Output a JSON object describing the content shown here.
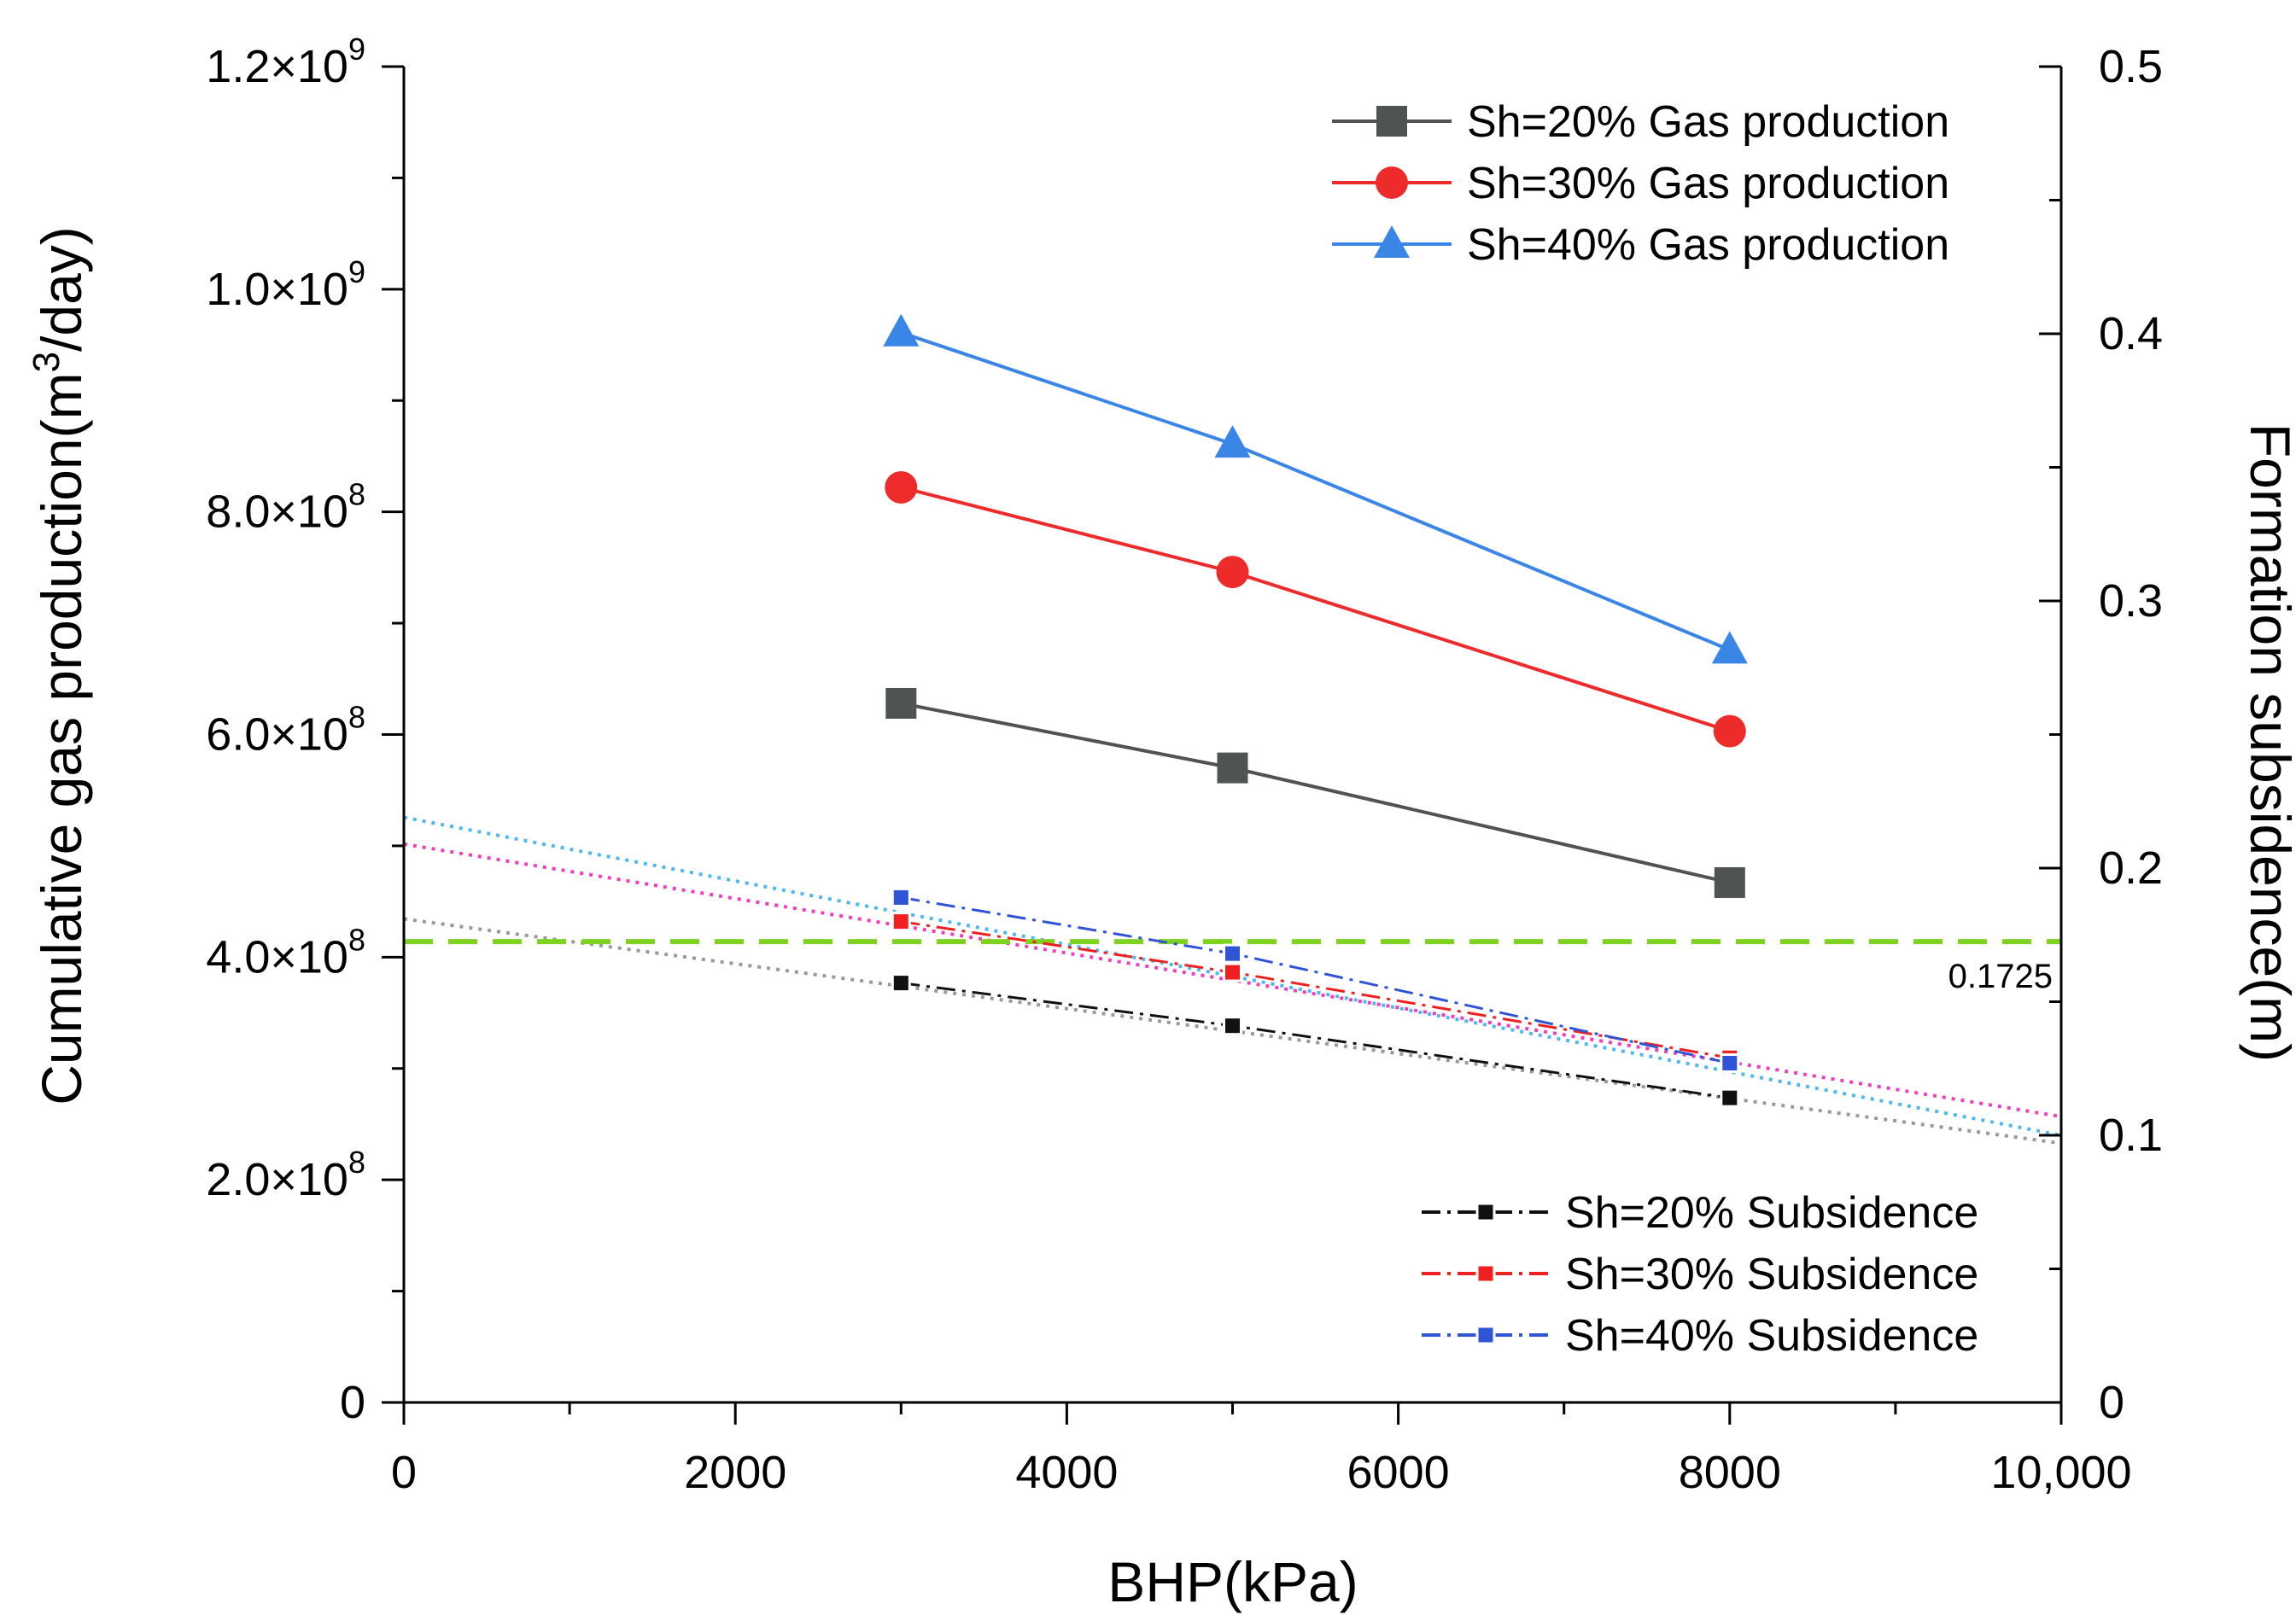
{
  "chart_data": {
    "type": "line",
    "title": "",
    "xlabel": "BHP(kPa)",
    "ylabel": "Cumulative gas production(m3/day)",
    "ylabel_parts": {
      "prefix": "Cumulative gas production(m",
      "sup": "3",
      "suffix": "/day)"
    },
    "y2label": "Formation subsidence(m)",
    "xlim": [
      0,
      10000
    ],
    "ylim": [
      0,
      1200000000
    ],
    "y2lim": [
      0,
      0.5
    ],
    "x_ticks": [
      0,
      2000,
      4000,
      6000,
      8000,
      10000
    ],
    "x_tick_labels": [
      "0",
      "2000",
      "4000",
      "6000",
      "8000",
      "10,000"
    ],
    "y_ticks": [
      0,
      200000000,
      400000000,
      600000000,
      800000000,
      1000000000,
      1200000000
    ],
    "y_tick_labels": [
      {
        "mant": "0",
        "exp": ""
      },
      {
        "mant": "2.0×10",
        "exp": "8"
      },
      {
        "mant": "4.0×10",
        "exp": "8"
      },
      {
        "mant": "6.0×10",
        "exp": "8"
      },
      {
        "mant": "8.0×10",
        "exp": "8"
      },
      {
        "mant": "1.0×10",
        "exp": "9"
      },
      {
        "mant": "1.2×10",
        "exp": "9"
      }
    ],
    "y2_ticks": [
      0,
      0.1,
      0.2,
      0.3,
      0.4,
      0.5
    ],
    "y2_tick_labels": [
      "0",
      "0.1",
      "0.2",
      "0.3",
      "0.4",
      "0.5"
    ],
    "series": [
      {
        "name": "Sh=20% Gas production",
        "axis": "y",
        "x": [
          3000,
          5000,
          8000
        ],
        "values": [
          628000000,
          570000000,
          467000000
        ],
        "color": "#505353",
        "marker": "square",
        "dash": "solid"
      },
      {
        "name": "Sh=30% Gas production",
        "axis": "y",
        "x": [
          3000,
          5000,
          8000
        ],
        "values": [
          822000000,
          746000000,
          603000000
        ],
        "color": "#ee2b2b",
        "marker": "circle",
        "dash": "solid"
      },
      {
        "name": "Sh=40% Gas production",
        "axis": "y",
        "x": [
          3000,
          5000,
          8000
        ],
        "values": [
          961000000,
          861000000,
          676000000
        ],
        "color": "#3a86e6",
        "marker": "triangle",
        "dash": "solid"
      },
      {
        "name": "Sh=20% Subsidence",
        "axis": "y2",
        "x": [
          3000,
          5000,
          8000
        ],
        "values": [
          0.157,
          0.141,
          0.114
        ],
        "color": "#111111",
        "marker": "small-square",
        "dash": "dashdot"
      },
      {
        "name": "Sh=30% Subsidence",
        "axis": "y2",
        "x": [
          3000,
          5000,
          8000
        ],
        "values": [
          0.18,
          0.161,
          0.129
        ],
        "color": "#ee2020",
        "marker": "small-square",
        "dash": "dashdot"
      },
      {
        "name": "Sh=40% Subsidence",
        "axis": "y2",
        "x": [
          3000,
          5000,
          8000
        ],
        "values": [
          0.189,
          0.168,
          0.127
        ],
        "color": "#2f55d6",
        "marker": "small-square",
        "dash": "dashdot"
      }
    ],
    "trendlines": [
      {
        "name": "Sh=20% Subsidence trend",
        "axis": "y2",
        "x": [
          0,
          10000
        ],
        "values": [
          0.181,
          0.097
        ],
        "color": "#999999"
      },
      {
        "name": "Sh=30% Subsidence trend",
        "axis": "y2",
        "x": [
          0,
          10000
        ],
        "values": [
          0.209,
          0.107
        ],
        "color": "#ef3fbf"
      },
      {
        "name": "Sh=40% Subsidence trend",
        "axis": "y2",
        "x": [
          0,
          10000
        ],
        "values": [
          0.219,
          0.1
        ],
        "color": "#4fb8f0"
      }
    ],
    "reference_line": {
      "axis": "y2",
      "value": 0.1725,
      "label": "0.1725",
      "color": "#7ed321"
    },
    "legend_position": [
      "top-right",
      "bottom-right"
    ],
    "grid": false
  }
}
